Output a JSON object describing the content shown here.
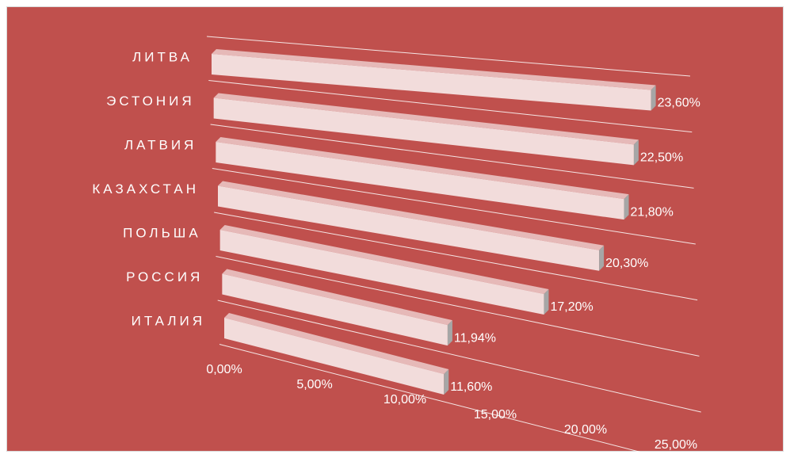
{
  "chart_data": {
    "type": "bar",
    "orientation": "horizontal",
    "style": "3d-perspective",
    "categories": [
      "ЛИТВА",
      "ЭСТОНИЯ",
      "ЛАТВИЯ",
      "КАЗАХСТАН",
      "ПОЛЬША",
      "РОССИЯ",
      "ИТАЛИЯ"
    ],
    "values": [
      23.6,
      22.5,
      21.8,
      20.3,
      17.2,
      11.94,
      11.6
    ],
    "value_labels": [
      "23,60%",
      "22,50%",
      "21,80%",
      "20,30%",
      "17,20%",
      "11,94%",
      "11,60%"
    ],
    "x_ticks": [
      "0,00%",
      "5,00%",
      "10,00%",
      "15,00%",
      "20,00%",
      "25,00%"
    ],
    "xlim": [
      0,
      25
    ],
    "grid": true,
    "legend": "none",
    "title": "",
    "xlabel": "",
    "ylabel": "",
    "colors": {
      "background": "#c0504d",
      "bar_face": "#f2dcdb",
      "bar_top": "#e6b9b8",
      "bar_side": "#a6a6a6",
      "text": "#ffffff",
      "grid": "#ffffff"
    }
  }
}
